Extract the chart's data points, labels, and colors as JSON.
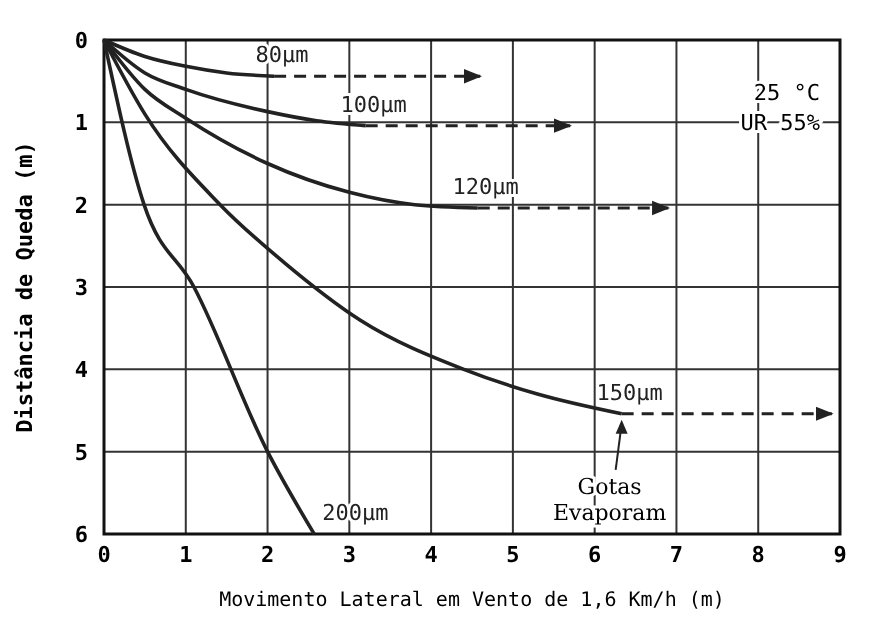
{
  "chart_data": {
    "type": "line",
    "xlabel": "Movimento Lateral em Vento de 1,6 Km/h (m)",
    "ylabel": "Distância de Queda (m)",
    "xlim": [
      0,
      9
    ],
    "ylim": [
      6,
      0
    ],
    "xticks": [
      0,
      1,
      2,
      3,
      4,
      5,
      6,
      7,
      8,
      9
    ],
    "yticks": [
      0,
      1,
      2,
      3,
      4,
      5,
      6
    ],
    "grid": true,
    "marker": "none",
    "series": [
      {
        "name": "80µm",
        "color": "#222222",
        "x": [
          0,
          0.5,
          1,
          1.5,
          2.08
        ],
        "values": [
          0,
          0.2,
          0.32,
          0.4,
          0.44
        ]
      },
      {
        "color": "#222222",
        "line_style": "dashed",
        "x": [
          2.08,
          4.6
        ],
        "values": [
          0.44,
          0.44
        ]
      },
      {
        "name": "100µm",
        "color": "#222222",
        "x": [
          0,
          0.5,
          1,
          2,
          2.6,
          3.2
        ],
        "values": [
          0,
          0.4,
          0.6,
          0.87,
          0.98,
          1.04
        ]
      },
      {
        "color": "#222222",
        "line_style": "dashed",
        "x": [
          3.2,
          5.7
        ],
        "values": [
          1.04,
          1.04
        ]
      },
      {
        "name": "120µm",
        "color": "#222222",
        "x": [
          0,
          0.5,
          1,
          2,
          3,
          3.8,
          4.57
        ],
        "values": [
          0,
          0.6,
          0.95,
          1.5,
          1.85,
          2.0,
          2.04
        ]
      },
      {
        "color": "#222222",
        "line_style": "dashed",
        "x": [
          4.57,
          6.9
        ],
        "values": [
          2.04,
          2.04
        ]
      },
      {
        "name": "150µm",
        "color": "#222222",
        "x": [
          0,
          0.5,
          1.42,
          2.2,
          3.13,
          4.4,
          5.3,
          6.33
        ],
        "values": [
          0,
          0.9,
          2,
          2.7,
          3.4,
          4.0,
          4.3,
          4.54
        ]
      },
      {
        "color": "#222222",
        "line_style": "dashed",
        "x": [
          6.33,
          8.9
        ],
        "values": [
          4.54,
          4.54
        ]
      },
      {
        "name": "200µm",
        "color": "#222222",
        "x": [
          0,
          0.49,
          1.1,
          2,
          2.57
        ],
        "values": [
          0,
          2,
          3,
          5,
          6
        ]
      }
    ],
    "annotations": [
      "25 °C",
      "UR 55%",
      {
        "text": "Gotas Evaporam",
        "x": 6.33,
        "y": 4.54
      }
    ]
  }
}
